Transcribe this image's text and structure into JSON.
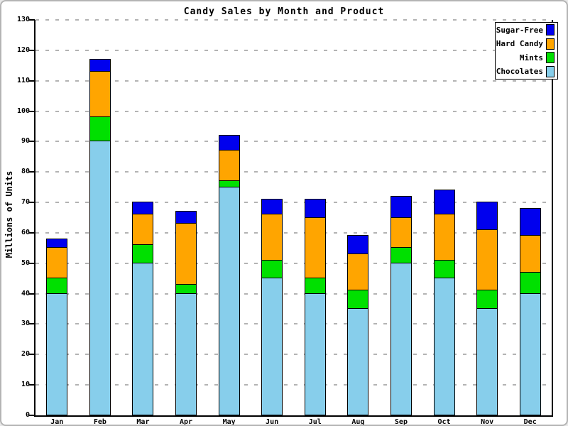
{
  "page": {
    "title": "Candy Sales by Month and Product",
    "ylabel": "Millions of Units"
  },
  "chart_data": {
    "type": "bar",
    "stacked": true,
    "title": "Candy Sales by Month and Product",
    "xlabel": "",
    "ylabel": "Millions of Units",
    "ylim": [
      0,
      130
    ],
    "ytick_step": 10,
    "grid": "horizontal dashed gray",
    "legend_position": "top-right",
    "categories": [
      "Jan",
      "Feb",
      "Mar",
      "Apr",
      "May",
      "Jun",
      "Jul",
      "Aug",
      "Sep",
      "Oct",
      "Nov",
      "Dec"
    ],
    "series": [
      {
        "name": "Chocolates",
        "color": "#87CEEB",
        "values": [
          40,
          90,
          50,
          40,
          75,
          45,
          40,
          35,
          50,
          45,
          35,
          40
        ]
      },
      {
        "name": "Mints",
        "color": "#00E000",
        "values": [
          5,
          8,
          6,
          3,
          2,
          6,
          5,
          6,
          5,
          6,
          6,
          7
        ]
      },
      {
        "name": "Hard Candy",
        "color": "#FFA500",
        "values": [
          10,
          15,
          10,
          20,
          10,
          15,
          20,
          12,
          10,
          15,
          20,
          12
        ]
      },
      {
        "name": "Sugar-Free",
        "color": "#0000EE",
        "values": [
          3,
          4,
          4,
          4,
          5,
          5,
          6,
          6,
          7,
          8,
          9,
          9
        ]
      }
    ],
    "totals": [
      58,
      117,
      70,
      67,
      92,
      71,
      71,
      59,
      72,
      74,
      70,
      68
    ],
    "legend_order": [
      "Sugar-Free",
      "Hard Candy",
      "Mints",
      "Chocolates"
    ]
  }
}
